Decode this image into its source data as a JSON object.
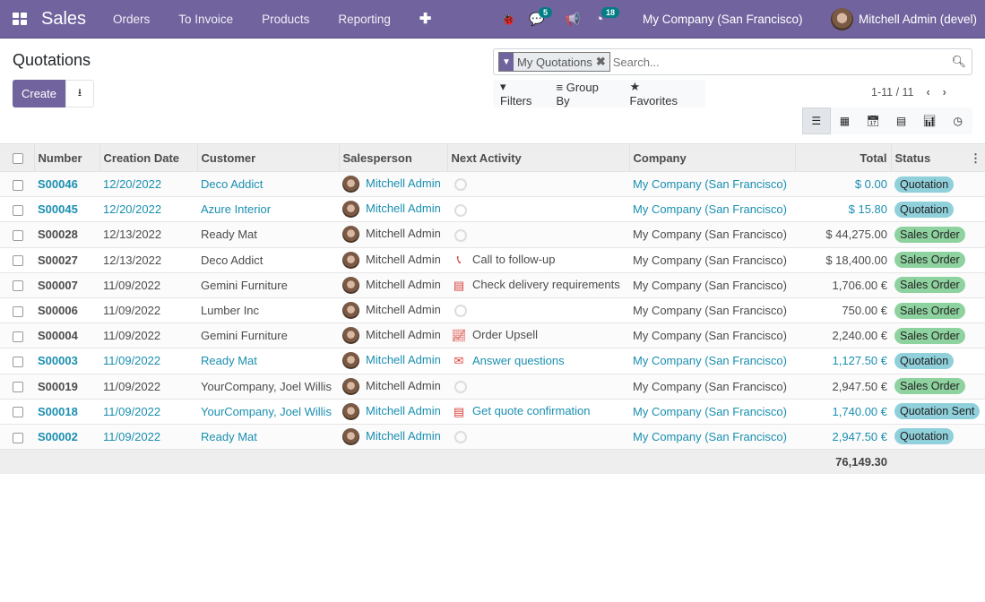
{
  "nav": {
    "app": "Sales",
    "menus": [
      "Orders",
      "To Invoice",
      "Products",
      "Reporting"
    ],
    "plus": "✚",
    "messages_count": "5",
    "activities_count": "18",
    "company": "My Company (San Francisco)",
    "user": "Mitchell Admin (devel)"
  },
  "page": {
    "title": "Quotations",
    "create": "Create"
  },
  "search": {
    "facet": "My Quotations",
    "placeholder": "Search...",
    "filters": "Filters",
    "group_by": "Group By",
    "favorites": "Favorites"
  },
  "pager": {
    "value": "1-11 / 11"
  },
  "colors": {
    "brand": "#71639e",
    "link": "#1a8fb0",
    "quotation": "#8fd0db",
    "sales_order": "#8ed29f"
  },
  "table": {
    "headers": [
      "Number",
      "Creation Date",
      "Customer",
      "Salesperson",
      "Next Activity",
      "Company",
      "Total",
      "Status"
    ],
    "rows": [
      {
        "number": "S00046",
        "date": "12/20/2022",
        "customer": "Deco Addict",
        "salesperson": "Mitchell Admin",
        "activity_icon": "clock",
        "activity": "",
        "company": "My Company (San Francisco)",
        "total": "$ 0.00",
        "status": "Quotation",
        "highlight": true
      },
      {
        "number": "S00045",
        "date": "12/20/2022",
        "customer": "Azure Interior",
        "salesperson": "Mitchell Admin",
        "activity_icon": "clock",
        "activity": "",
        "company": "My Company (San Francisco)",
        "total": "$ 15.80",
        "status": "Quotation",
        "highlight": true
      },
      {
        "number": "S00028",
        "date": "12/13/2022",
        "customer": "Ready Mat",
        "salesperson": "Mitchell Admin",
        "activity_icon": "clock",
        "activity": "",
        "company": "My Company (San Francisco)",
        "total": "$ 44,275.00",
        "status": "Sales Order",
        "highlight": false
      },
      {
        "number": "S00027",
        "date": "12/13/2022",
        "customer": "Deco Addict",
        "salesperson": "Mitchell Admin",
        "activity_icon": "phone",
        "activity": "Call to follow-up",
        "company": "My Company (San Francisco)",
        "total": "$ 18,400.00",
        "status": "Sales Order",
        "highlight": false
      },
      {
        "number": "S00007",
        "date": "11/09/2022",
        "customer": "Gemini Furniture",
        "salesperson": "Mitchell Admin",
        "activity_icon": "tasks",
        "activity": "Check delivery requirements",
        "company": "My Company (San Francisco)",
        "total": "1,706.00 €",
        "status": "Sales Order",
        "highlight": false
      },
      {
        "number": "S00006",
        "date": "11/09/2022",
        "customer": "Lumber Inc",
        "salesperson": "Mitchell Admin",
        "activity_icon": "clock",
        "activity": "",
        "company": "My Company (San Francisco)",
        "total": "750.00 €",
        "status": "Sales Order",
        "highlight": false
      },
      {
        "number": "S00004",
        "date": "11/09/2022",
        "customer": "Gemini Furniture",
        "salesperson": "Mitchell Admin",
        "activity_icon": "line-chart",
        "activity": "Order Upsell",
        "company": "My Company (San Francisco)",
        "total": "2,240.00 €",
        "status": "Sales Order",
        "highlight": false
      },
      {
        "number": "S00003",
        "date": "11/09/2022",
        "customer": "Ready Mat",
        "salesperson": "Mitchell Admin",
        "activity_icon": "envelope",
        "activity": "Answer questions",
        "company": "My Company (San Francisco)",
        "total": "1,127.50 €",
        "status": "Quotation",
        "highlight": true
      },
      {
        "number": "S00019",
        "date": "11/09/2022",
        "customer": "YourCompany, Joel Willis",
        "salesperson": "Mitchell Admin",
        "activity_icon": "clock",
        "activity": "",
        "company": "My Company (San Francisco)",
        "total": "2,947.50 €",
        "status": "Sales Order",
        "highlight": false
      },
      {
        "number": "S00018",
        "date": "11/09/2022",
        "customer": "YourCompany, Joel Willis",
        "salesperson": "Mitchell Admin",
        "activity_icon": "tasks",
        "activity": "Get quote confirmation",
        "company": "My Company (San Francisco)",
        "total": "1,740.00 €",
        "status": "Quotation Sent",
        "highlight": true
      },
      {
        "number": "S00002",
        "date": "11/09/2022",
        "customer": "Ready Mat",
        "salesperson": "Mitchell Admin",
        "activity_icon": "clock",
        "activity": "",
        "company": "My Company (San Francisco)",
        "total": "2,947.50 €",
        "status": "Quotation",
        "highlight": true
      }
    ],
    "grand_total": "76,149.30"
  }
}
